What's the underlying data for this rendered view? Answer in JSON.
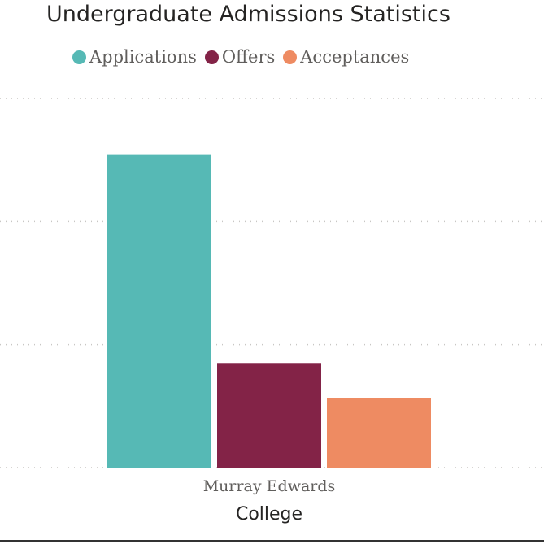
{
  "chart_data": {
    "type": "bar",
    "title": "Undergraduate Admissions Statistics",
    "categories": [
      "Murray Edwards"
    ],
    "series": [
      {
        "name": "Applications",
        "values": [
          1270
        ],
        "color": "#56B9B5"
      },
      {
        "name": "Offers",
        "values": [
          422
        ],
        "color": "#832347"
      },
      {
        "name": "Acceptances",
        "values": [
          282
        ],
        "color": "#EE8B62"
      }
    ],
    "xlabel": "College",
    "ylabel": "",
    "ylim": [
      0,
      1500
    ],
    "gridlines": [
      500,
      1000,
      1500
    ],
    "grid": true,
    "legend": "top-left"
  }
}
